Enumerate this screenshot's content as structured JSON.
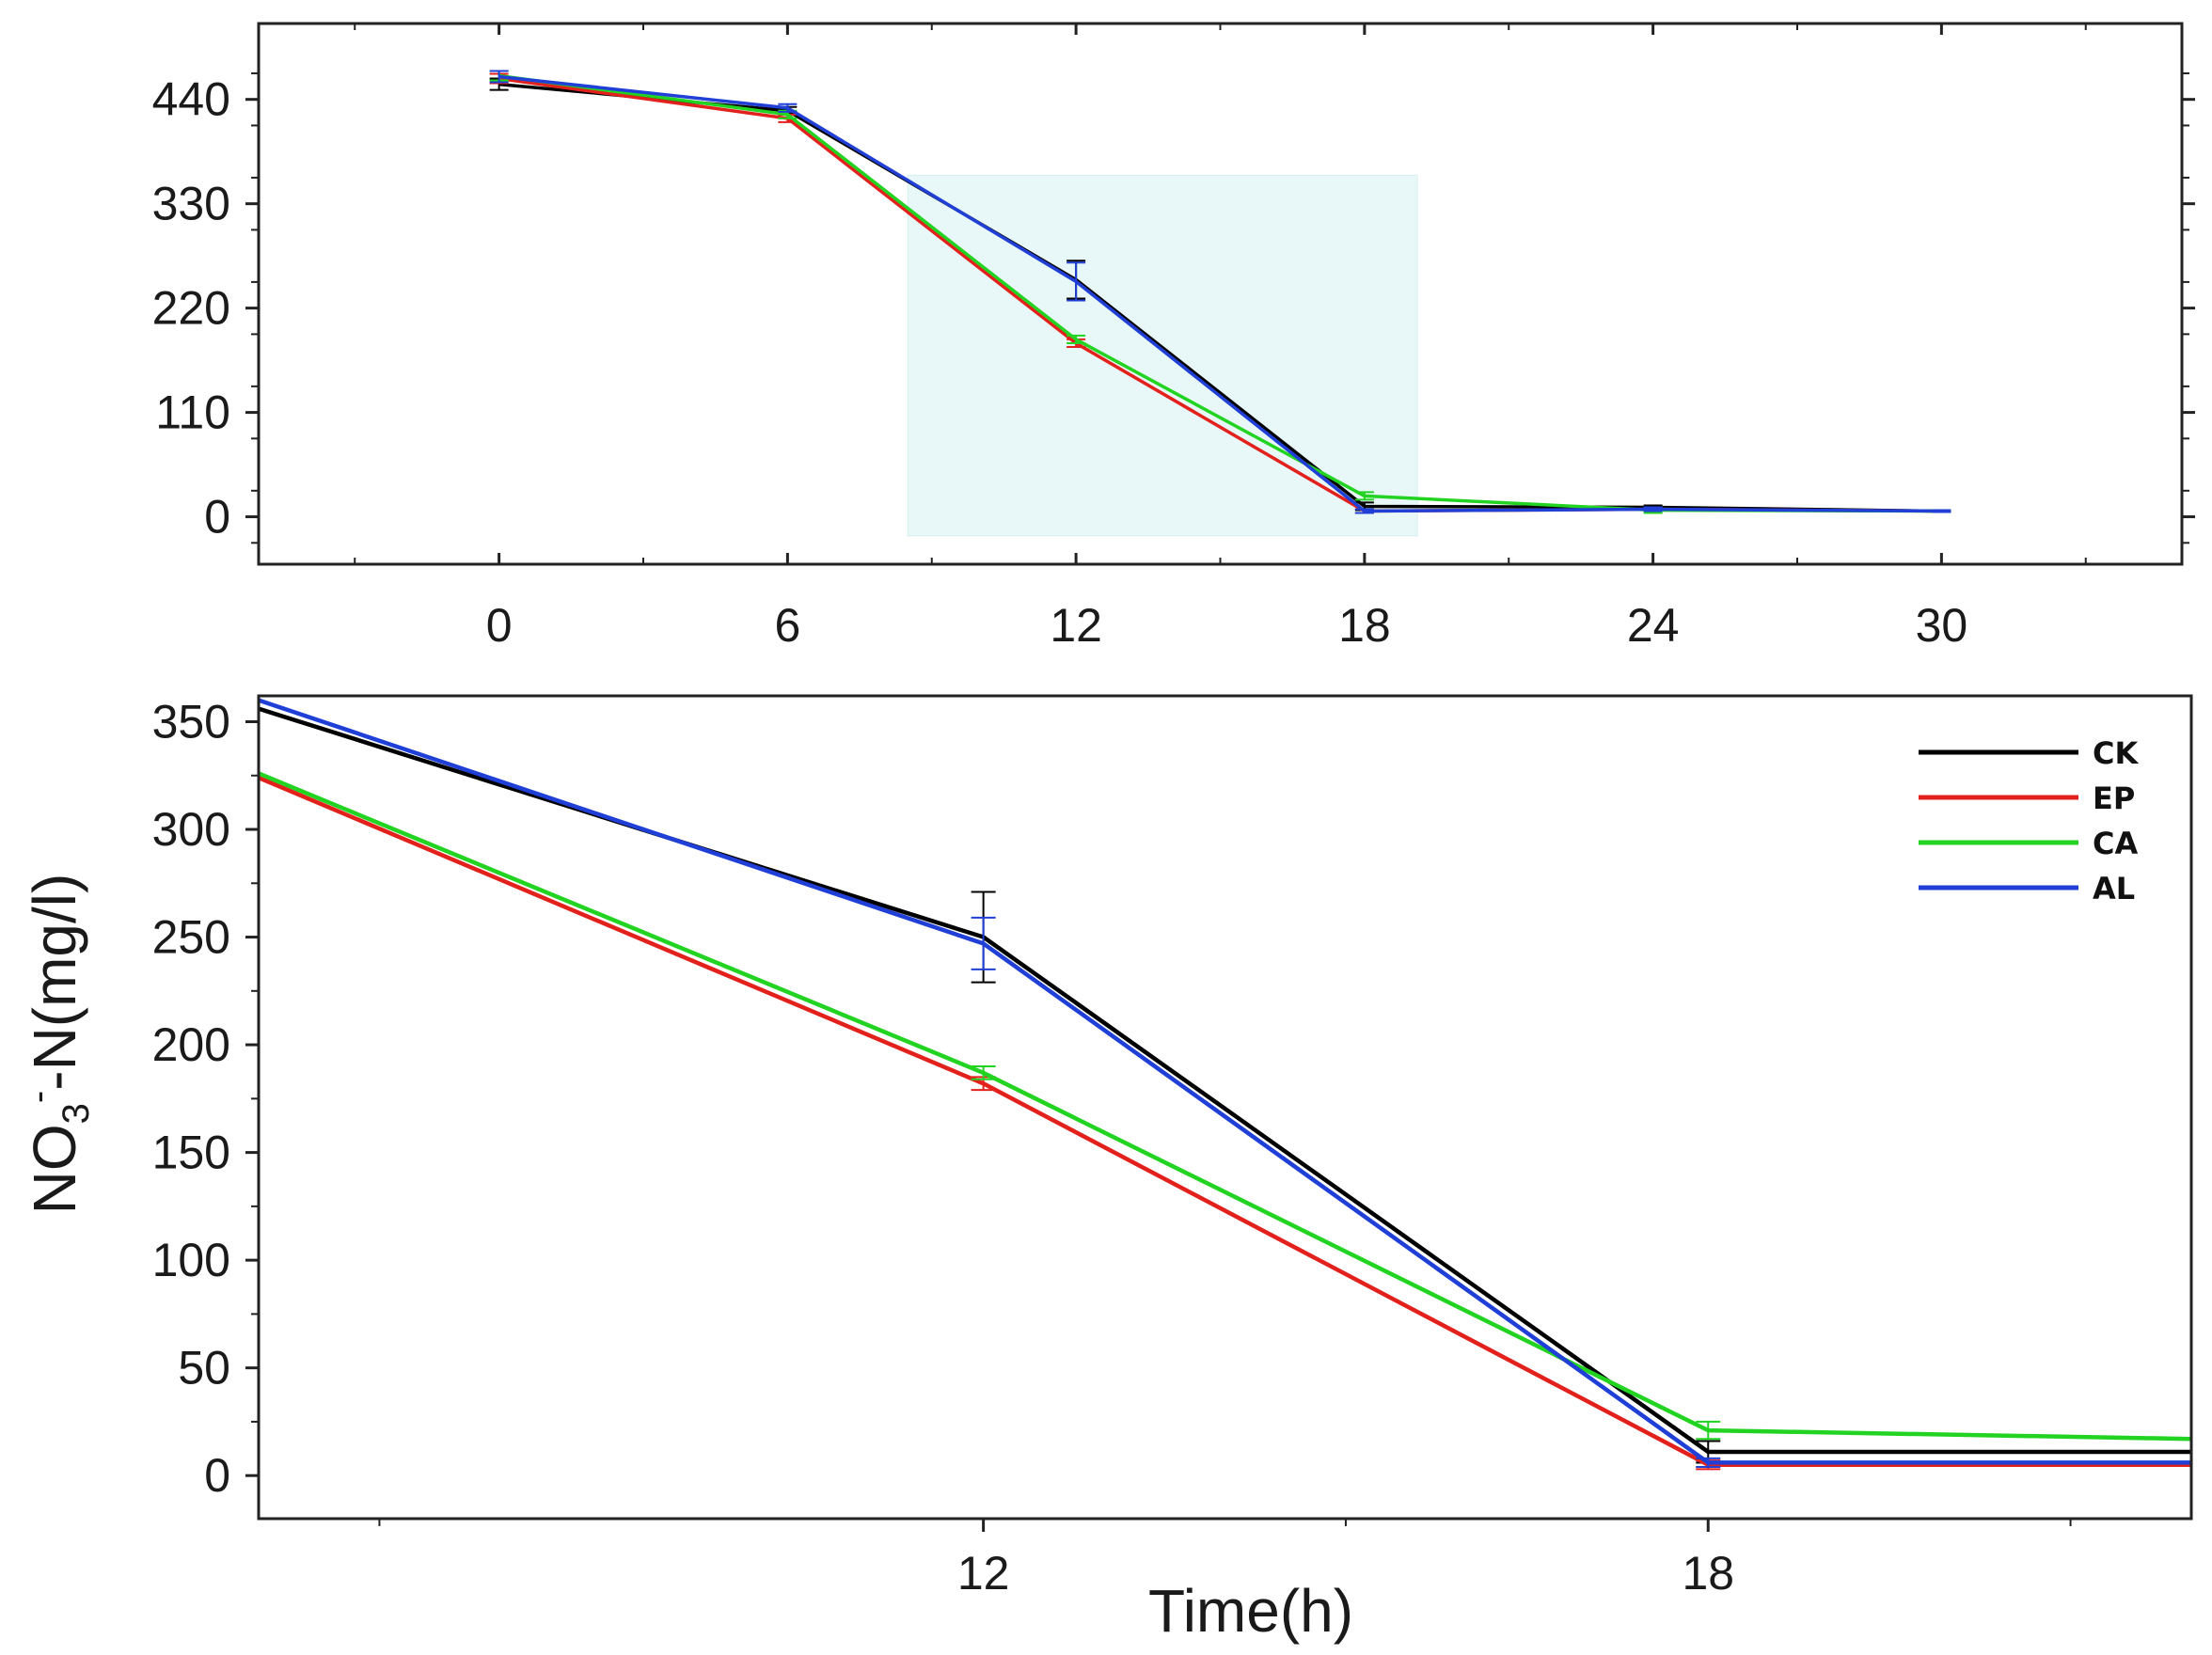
{
  "chart_data": [
    {
      "type": "line",
      "panel": "overview",
      "xlim": [
        -5,
        35
      ],
      "ylim": [
        -50,
        520
      ],
      "x": [
        0,
        6,
        12,
        18,
        24,
        30
      ],
      "xticks": [
        "0",
        "6",
        "12",
        "18",
        "24",
        "30"
      ],
      "yticks": [
        "0",
        "110",
        "220",
        "330",
        "440"
      ],
      "xlabel": "",
      "ylabel": "",
      "grid": false,
      "highlight_region": {
        "x": [
          8.5,
          19.1
        ],
        "y": [
          -20,
          360
        ],
        "color": "#e8f7f8"
      },
      "series": [
        {
          "name": "CK",
          "color": "#000000",
          "values": [
            456,
            428,
            250,
            11,
            10,
            6
          ],
          "errors": [
            6,
            4,
            20,
            4,
            2,
            1
          ]
        },
        {
          "name": "EP",
          "color": "#e3211c",
          "values": [
            462,
            420,
            183,
            6,
            8,
            6
          ],
          "errors": [
            5,
            4,
            4,
            2,
            2,
            1
          ]
        },
        {
          "name": "CA",
          "color": "#22d322",
          "values": [
            465,
            424,
            187,
            22,
            7,
            6
          ],
          "errors": [
            5,
            4,
            4,
            4,
            3,
            1
          ]
        },
        {
          "name": "AL",
          "color": "#1f3fd6",
          "values": [
            464,
            431,
            248,
            6,
            8,
            6
          ],
          "errors": [
            6,
            4,
            20,
            2,
            2,
            1
          ]
        }
      ]
    },
    {
      "type": "line",
      "panel": "zoom",
      "xlim": [
        6,
        22
      ],
      "ylim": [
        -20,
        362
      ],
      "xticks": [
        "12",
        "18"
      ],
      "yticks": [
        "0",
        "50",
        "100",
        "150",
        "200",
        "250",
        "300",
        "350"
      ],
      "xlabel": "Time(h)",
      "ylabel_main": "NO",
      "ylabel_sub": "3",
      "ylabel_sup": "-",
      "ylabel_rest": "-N(mg/l)",
      "grid": false,
      "legend_position": "top-right",
      "series": [
        {
          "name": "CK",
          "color": "#000000",
          "x": [
            6,
            12,
            18,
            22
          ],
          "values": [
            356,
            250,
            11,
            11
          ],
          "errors": [
            0,
            21,
            5,
            0
          ]
        },
        {
          "name": "EP",
          "color": "#e3211c",
          "x": [
            6,
            12,
            18,
            22
          ],
          "values": [
            324,
            182,
            5,
            5
          ],
          "errors": [
            0,
            3,
            2,
            0
          ]
        },
        {
          "name": "CA",
          "color": "#22d322",
          "x": [
            6,
            12,
            18,
            22
          ],
          "values": [
            326,
            187,
            21,
            17
          ],
          "errors": [
            0,
            3,
            4,
            0
          ]
        },
        {
          "name": "AL",
          "color": "#1f3fd6",
          "x": [
            6,
            12,
            18,
            22
          ],
          "values": [
            360,
            247,
            6,
            6
          ],
          "errors": [
            0,
            12,
            2,
            0
          ]
        }
      ]
    }
  ]
}
